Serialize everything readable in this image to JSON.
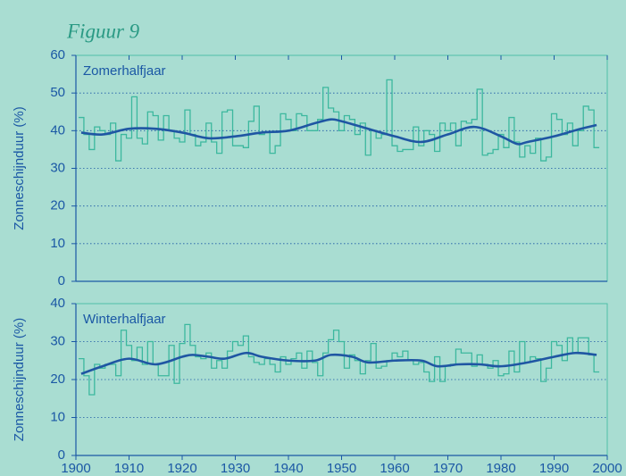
{
  "title": "Figuur 9",
  "chart_data": [
    {
      "type": "step-line",
      "annotation": "Zomerhalfjaar",
      "ylabel": "Zonneschijnduur (%)",
      "xlim": [
        1900,
        2000
      ],
      "ylim": [
        0,
        60
      ],
      "yticks": [
        0,
        10,
        20,
        30,
        40,
        50,
        60
      ],
      "grid": true,
      "steps": {
        "color": "#3cb89e",
        "x": [
          1901,
          1902,
          1903,
          1904,
          1905,
          1906,
          1907,
          1908,
          1909,
          1910,
          1911,
          1912,
          1913,
          1914,
          1915,
          1916,
          1917,
          1918,
          1919,
          1920,
          1921,
          1922,
          1923,
          1924,
          1925,
          1926,
          1927,
          1928,
          1929,
          1930,
          1931,
          1932,
          1933,
          1934,
          1935,
          1936,
          1937,
          1938,
          1939,
          1940,
          1941,
          1942,
          1943,
          1944,
          1945,
          1946,
          1947,
          1948,
          1949,
          1950,
          1951,
          1952,
          1953,
          1954,
          1955,
          1956,
          1957,
          1958,
          1959,
          1960,
          1961,
          1962,
          1963,
          1964,
          1965,
          1966,
          1967,
          1968,
          1969,
          1970,
          1971,
          1972,
          1973,
          1974,
          1975,
          1976,
          1977,
          1978,
          1979,
          1980,
          1981,
          1982,
          1983,
          1984,
          1985,
          1986,
          1987,
          1988,
          1989,
          1990,
          1991,
          1992,
          1993,
          1994,
          1995,
          1996,
          1997,
          1998
        ],
        "values": [
          43.5,
          39,
          35,
          41,
          40,
          39,
          42,
          32,
          39,
          38,
          49,
          38,
          36.5,
          45,
          44,
          37.5,
          44,
          40,
          38,
          37,
          45.5,
          39,
          36,
          37,
          42,
          37,
          34,
          45,
          45.5,
          36,
          36,
          35.5,
          42.5,
          46.5,
          39,
          39.5,
          34,
          36,
          44.5,
          43,
          40,
          44.5,
          44,
          40,
          40,
          43,
          51.5,
          46,
          45,
          40,
          44,
          43,
          39,
          42,
          33.5,
          40,
          38,
          39,
          53.5,
          36,
          34.5,
          35,
          35,
          41,
          36,
          40,
          39,
          34.5,
          42,
          40,
          42,
          36,
          42.5,
          42,
          43,
          51,
          33.5,
          34,
          35,
          39,
          35.5,
          43.5,
          37,
          33,
          36,
          34,
          38,
          32,
          33,
          44.5,
          43,
          39,
          42,
          36,
          40,
          46.5,
          45.5,
          35.5
        ]
      },
      "trend": {
        "color": "#1f56a3",
        "x": [
          1901,
          1905,
          1910,
          1915,
          1920,
          1925,
          1930,
          1935,
          1940,
          1945,
          1948,
          1950,
          1955,
          1960,
          1965,
          1970,
          1975,
          1980,
          1983,
          1985,
          1990,
          1995,
          1998
        ],
        "values": [
          39.5,
          39,
          40.5,
          40.5,
          39.5,
          38,
          38.5,
          39.5,
          40,
          42,
          43,
          42.5,
          40.5,
          38.5,
          37,
          39,
          41,
          38.5,
          36.5,
          37,
          38.5,
          40.5,
          41.5
        ]
      }
    },
    {
      "type": "step-line",
      "annotation": "Winterhalfjaar",
      "ylabel": "Zonneschijnduur (%)",
      "xlim": [
        1900,
        2000
      ],
      "xticks": [
        1900,
        1910,
        1920,
        1930,
        1940,
        1950,
        1960,
        1970,
        1980,
        1990,
        2000
      ],
      "ylim": [
        0,
        40
      ],
      "yticks": [
        0,
        10,
        20,
        30,
        40
      ],
      "grid": true,
      "steps": {
        "color": "#3cb89e",
        "x": [
          1901,
          1902,
          1903,
          1904,
          1905,
          1906,
          1907,
          1908,
          1909,
          1910,
          1911,
          1912,
          1913,
          1914,
          1915,
          1916,
          1917,
          1918,
          1919,
          1920,
          1921,
          1922,
          1923,
          1924,
          1925,
          1926,
          1927,
          1928,
          1929,
          1930,
          1931,
          1932,
          1933,
          1934,
          1935,
          1936,
          1937,
          1938,
          1939,
          1940,
          1941,
          1942,
          1943,
          1944,
          1945,
          1946,
          1947,
          1948,
          1949,
          1950,
          1951,
          1952,
          1953,
          1954,
          1955,
          1956,
          1957,
          1958,
          1959,
          1960,
          1961,
          1962,
          1963,
          1964,
          1965,
          1966,
          1967,
          1968,
          1969,
          1970,
          1971,
          1972,
          1973,
          1974,
          1975,
          1976,
          1977,
          1978,
          1979,
          1980,
          1981,
          1982,
          1983,
          1984,
          1985,
          1986,
          1987,
          1988,
          1989,
          1990,
          1991,
          1992,
          1993,
          1994,
          1995,
          1996,
          1997,
          1998
        ],
        "values": [
          25.5,
          21,
          16,
          24,
          23,
          24,
          24,
          21,
          33,
          29,
          25,
          28.5,
          24,
          30,
          24,
          21,
          21,
          29,
          19,
          29.5,
          34.5,
          29,
          26,
          25.5,
          27,
          23,
          25,
          23,
          27.5,
          30,
          29,
          31.5,
          26,
          24.5,
          24,
          25.5,
          24,
          22,
          26,
          24,
          25.5,
          27,
          23,
          27.5,
          24.5,
          21,
          27,
          30.5,
          33,
          30,
          23,
          26.5,
          25,
          21.5,
          25,
          29.5,
          23,
          23.5,
          25,
          27,
          26,
          27.5,
          25,
          24,
          24.5,
          22,
          19.5,
          26,
          19.5,
          23.5,
          24,
          28,
          27,
          27,
          23.5,
          26.5,
          24,
          23,
          25,
          21,
          21.5,
          27.5,
          22,
          30,
          24.5,
          26,
          25.5,
          19.5,
          23,
          30,
          29,
          25,
          31,
          27,
          31,
          31,
          26.5,
          22
        ]
      },
      "trend": {
        "color": "#1f56a3",
        "x": [
          1901,
          1905,
          1910,
          1915,
          1920,
          1922,
          1925,
          1928,
          1932,
          1935,
          1940,
          1945,
          1948,
          1952,
          1955,
          1960,
          1965,
          1968,
          1972,
          1976,
          1980,
          1985,
          1990,
          1994,
          1998
        ],
        "values": [
          21.5,
          23.5,
          25.5,
          24,
          26,
          26.5,
          26,
          25.5,
          27,
          26,
          25,
          25,
          26.5,
          26,
          24.5,
          25,
          25,
          23.5,
          24,
          24,
          23.5,
          24.5,
          26,
          27,
          26.5
        ]
      }
    }
  ]
}
